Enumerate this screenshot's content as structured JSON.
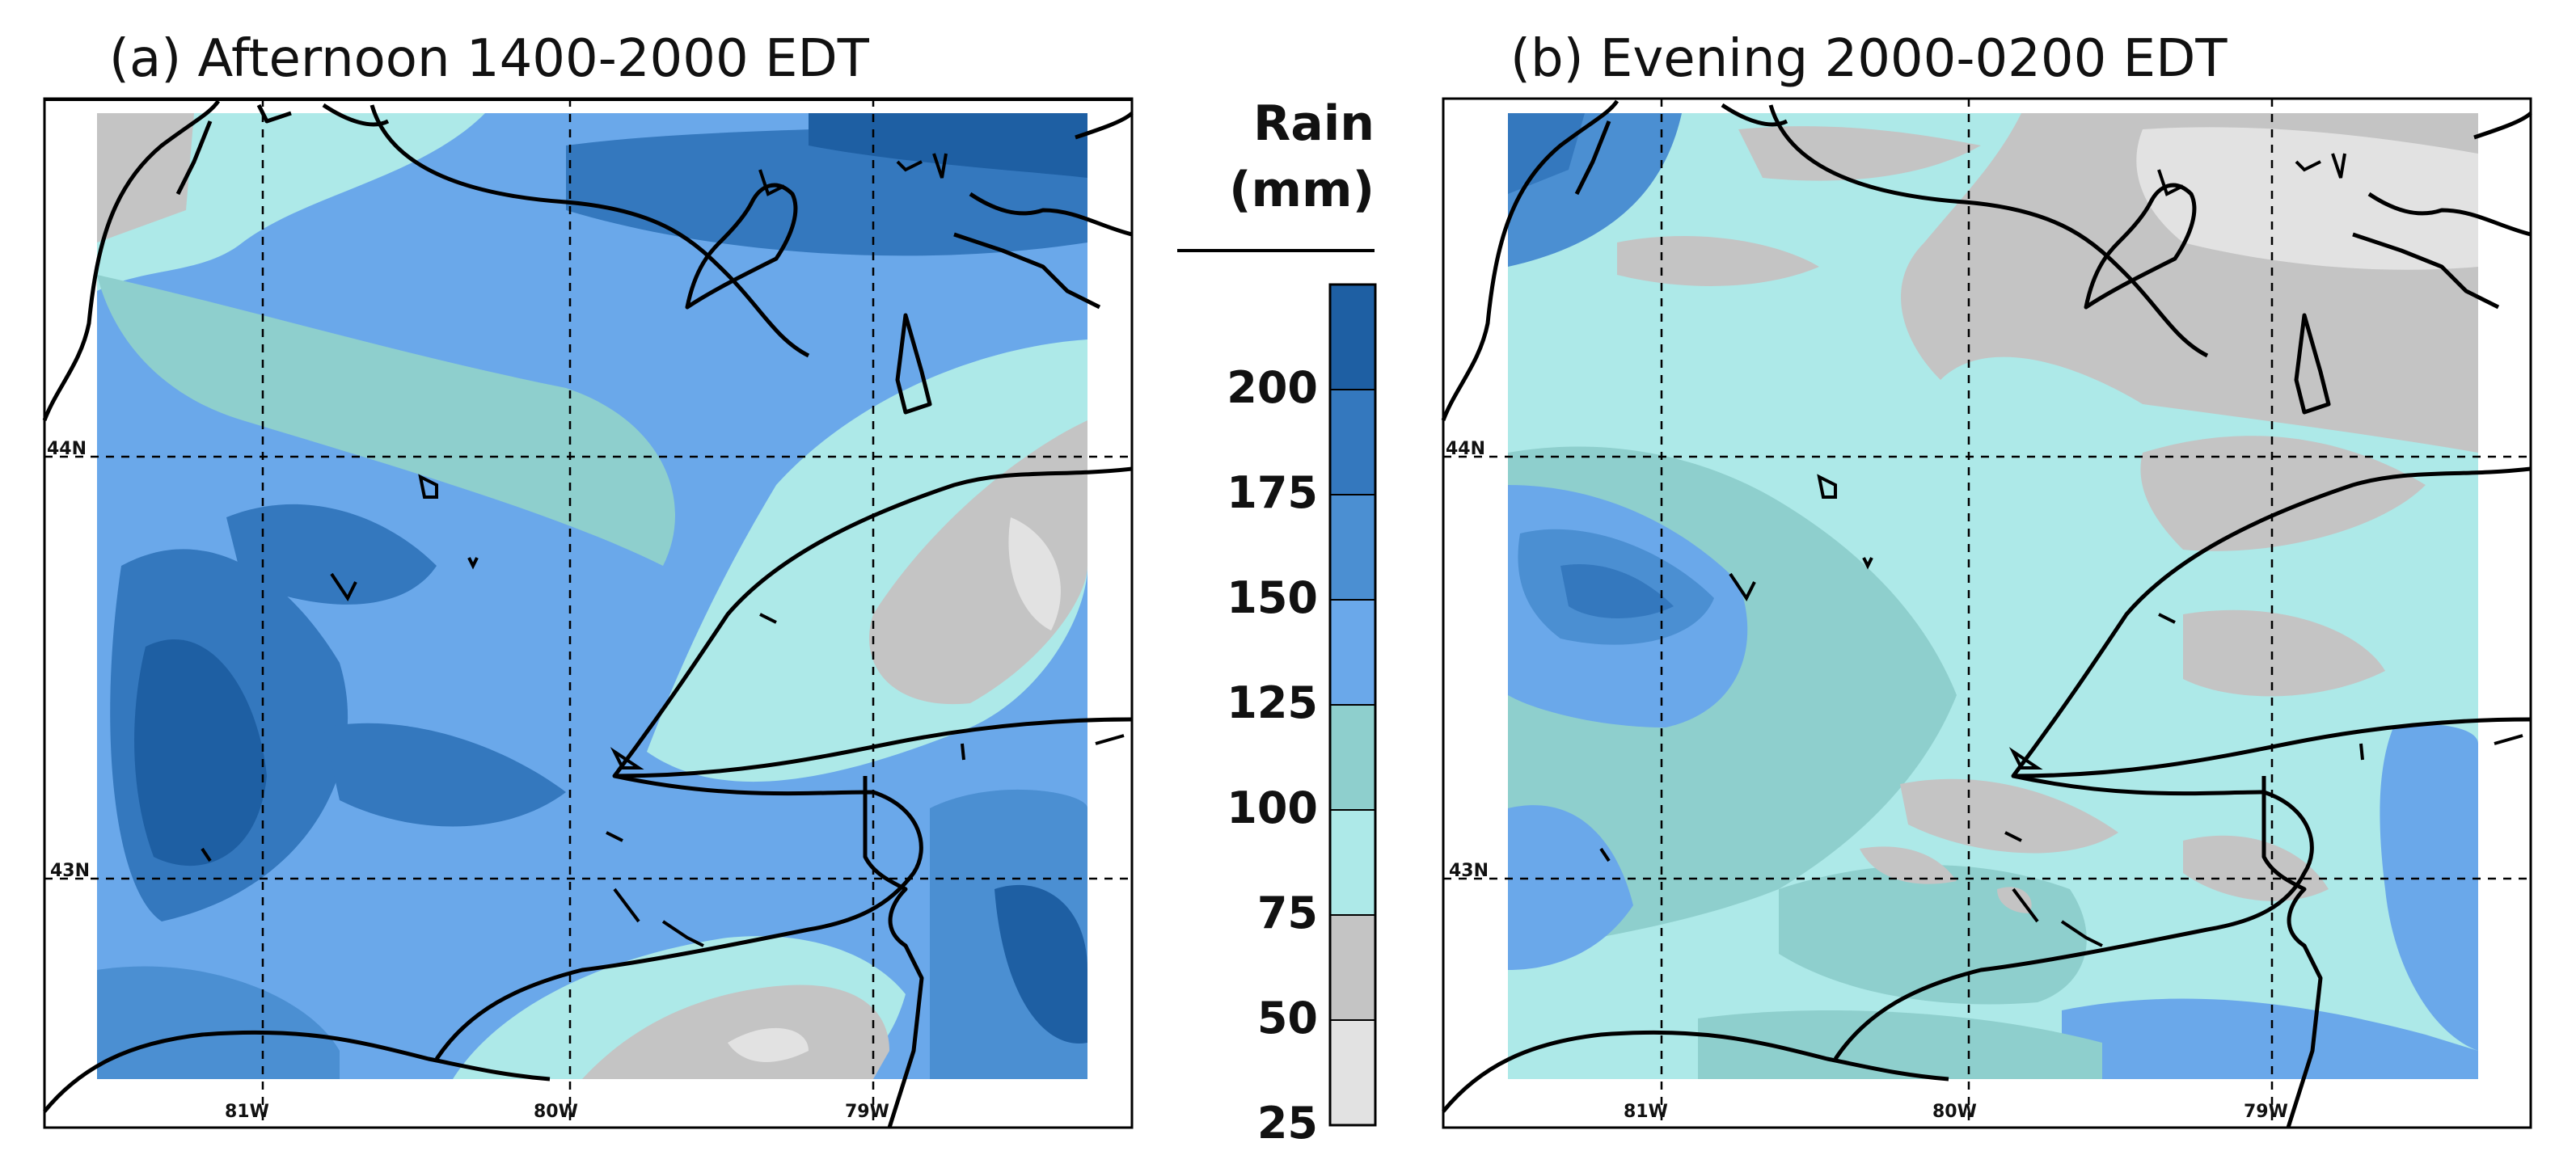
{
  "panels": [
    {
      "title": "(a) Afternoon 1400-2000 EDT",
      "lat_labels": [
        "44N",
        "43N"
      ],
      "lon_labels": [
        "81W",
        "80W",
        "79W"
      ]
    },
    {
      "title": "(b) Evening 2000-0200 EDT",
      "lat_labels": [
        "44N",
        "43N"
      ],
      "lon_labels": [
        "81W",
        "80W",
        "79W"
      ]
    }
  ],
  "legend": {
    "title_line1": "Rain",
    "title_line2": "(mm)",
    "ticks": [
      "200",
      "175",
      "150",
      "125",
      "100",
      "75",
      "50",
      "25"
    ],
    "colors": [
      "#1e5fa3",
      "#3478be",
      "#4b8fd2",
      "#6aa8ea",
      "#8ecfcd",
      "#ade9e8",
      "#c4c4c4",
      "#e2e2e2"
    ]
  }
}
